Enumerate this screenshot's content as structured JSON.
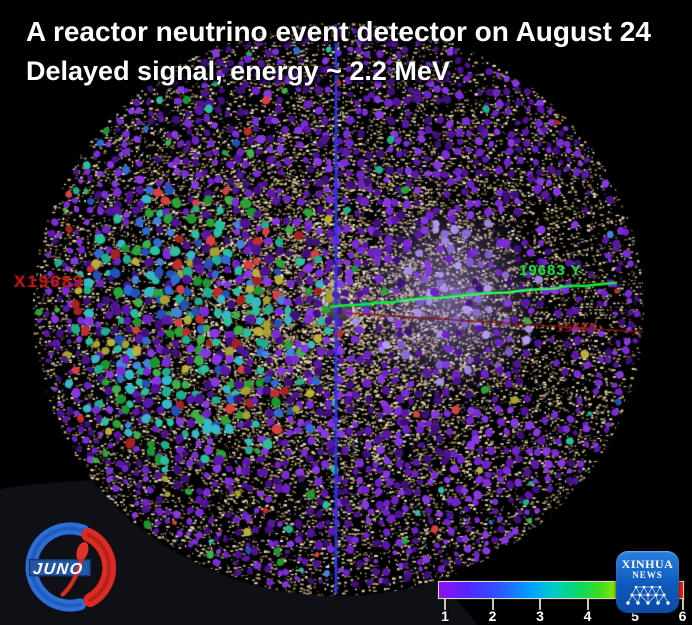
{
  "header": {
    "title": "A reactor neutrino event detector on August 24",
    "subtitle": "Delayed signal, energy ~ 2.2 MeV"
  },
  "viz": {
    "axis_labels": {
      "x_left": "X19683",
      "y_right": "19683 Y",
      "x_right_faint": "19683"
    },
    "line_colors": {
      "vertical_axis_blue": "#2b36f0",
      "track_green": "#12e83e",
      "track_red": "#8f1414"
    },
    "palette": {
      "background": "#000000",
      "wedge": "#0e1015",
      "speckle": [
        "#d8c69e",
        "#e7d8b4",
        "#c2a97c",
        "#f0e5c9",
        "#a08a5e",
        "#8f7a50"
      ],
      "purple": [
        "#5c17aa",
        "#6e22c8",
        "#7b2cd8",
        "#4e1392",
        "#8838e2",
        "#3f0f7a"
      ],
      "lavender": [
        "#9f84e8",
        "#8a6ada",
        "#b29af0",
        "#7e5ace",
        "#a890ea"
      ],
      "accent_green": [
        "#2aa339",
        "#3db04a",
        "#1e9630"
      ],
      "accent_teal": [
        "#1fae8e",
        "#2bbfa0"
      ],
      "accent_blue": [
        "#2e6bd4",
        "#4484de",
        "#2450b8"
      ],
      "accent_red": [
        "#c22c2c",
        "#a62222",
        "#d84040"
      ],
      "accent_olive": [
        "#a8a030",
        "#bcae3a"
      ],
      "accent_cyan": [
        "#35b9c9"
      ]
    }
  },
  "colorbar": {
    "ticks": [
      "1",
      "2",
      "3",
      "4",
      "5",
      "6"
    ],
    "gradient": [
      "#8d12f0 0%",
      "#5326ff 12%",
      "#2e53ff 24%",
      "#00a2ff 38%",
      "#00cfc0 48%",
      "#0bd75e 58%",
      "#3fdc1f 66%",
      "#a2e800 74%",
      "#ffd400 82%",
      "#ff8800 90%",
      "#ff2a00 97%",
      "#ff1200 100%"
    ]
  },
  "logos": {
    "juno": {
      "label": "JUNO",
      "blue": "#2b6fd6",
      "red": "#db2b22",
      "banner": "#2456a8"
    },
    "xinhua": {
      "line1": "XINHUA",
      "line2": "NEWS",
      "background": "#0d59bc"
    }
  },
  "chart_data": {
    "type": "scatter",
    "title": "A reactor neutrino event detector on August 24",
    "subtitle": "Delayed signal, energy ~ 2.2 MeV",
    "description": "Spherical JUNO PMT hit map; dot color encodes the 1-6 color scale (violet to red); dense multicolor hit cluster left of center, lavender glow right of center, green and red reconstructed tracks, blue vertical axis line",
    "colorbar": {
      "tick_labels": [
        1,
        2,
        3,
        4,
        5,
        6
      ],
      "colors_left_to_right": [
        "violet",
        "blue",
        "cyan",
        "green",
        "yellow-green",
        "red"
      ],
      "range": [
        1,
        6
      ]
    },
    "annotations": [
      "X19683",
      "19683 Y",
      "19683"
    ],
    "legend_position": "bottom-right",
    "grid": false
  }
}
